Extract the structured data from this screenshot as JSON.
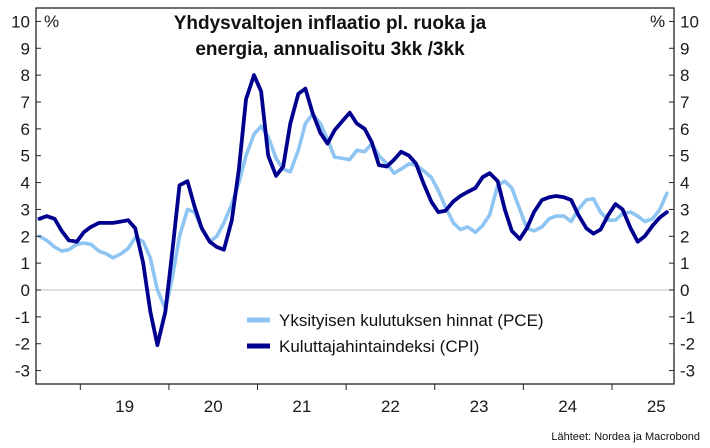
{
  "chart_data": {
    "type": "line",
    "title_lines": [
      "Yhdysvaltojen inflaatio pl. ruoka ja",
      "energia, annualisoitu 3kk /3kk"
    ],
    "ylabel_left": "%",
    "ylabel_right": "%",
    "ylim": [
      -3.5,
      10.5
    ],
    "yticks": [
      -3,
      -2,
      -1,
      0,
      1,
      2,
      3,
      4,
      5,
      6,
      7,
      8,
      9,
      10
    ],
    "x_range": [
      2018.5,
      2025.7
    ],
    "year_ticks": [
      2019,
      2020,
      2021,
      2022,
      2023,
      2024,
      2025,
      2026
    ],
    "year_labels": [
      {
        "label": "19",
        "x": 2019.5
      },
      {
        "label": "20",
        "x": 2020.5
      },
      {
        "label": "21",
        "x": 2021.5
      },
      {
        "label": "22",
        "x": 2022.5
      },
      {
        "label": "23",
        "x": 2023.5
      },
      {
        "label": "24",
        "x": 2024.5
      },
      {
        "label": "25",
        "x": 2025.5
      }
    ],
    "series": [
      {
        "name": "Yksityisen kulutuksen hinnat (PCE)",
        "color": "#8ec5f2",
        "x": [
          2018.54,
          2018.62,
          2018.71,
          2018.79,
          2018.87,
          2018.96,
          2019.04,
          2019.12,
          2019.21,
          2019.29,
          2019.37,
          2019.46,
          2019.54,
          2019.62,
          2019.71,
          2019.79,
          2019.87,
          2019.96,
          2020.04,
          2020.12,
          2020.21,
          2020.29,
          2020.37,
          2020.46,
          2020.54,
          2020.62,
          2020.71,
          2020.79,
          2020.87,
          2020.96,
          2021.04,
          2021.12,
          2021.21,
          2021.29,
          2021.37,
          2021.46,
          2021.54,
          2021.62,
          2021.71,
          2021.79,
          2021.87,
          2021.96,
          2022.04,
          2022.12,
          2022.21,
          2022.29,
          2022.37,
          2022.46,
          2022.54,
          2022.62,
          2022.71,
          2022.79,
          2022.87,
          2022.96,
          2023.04,
          2023.12,
          2023.21,
          2023.29,
          2023.37,
          2023.46,
          2023.54,
          2023.62,
          2023.71,
          2023.79,
          2023.87,
          2023.96,
          2024.04,
          2024.12,
          2024.21,
          2024.29,
          2024.37,
          2024.46,
          2024.54,
          2024.62,
          2024.71,
          2024.79,
          2024.87,
          2024.96,
          2025.04,
          2025.12,
          2025.21,
          2025.29,
          2025.37,
          2025.46,
          2025.54,
          2025.62
        ],
        "values": [
          2.0,
          1.85,
          1.6,
          1.45,
          1.5,
          1.7,
          1.75,
          1.7,
          1.45,
          1.35,
          1.2,
          1.35,
          1.55,
          1.95,
          1.8,
          1.2,
          0.0,
          -0.7,
          0.5,
          2.0,
          3.0,
          2.9,
          2.3,
          1.8,
          2.0,
          2.5,
          3.2,
          4.0,
          5.0,
          5.8,
          6.1,
          5.7,
          4.9,
          4.5,
          4.4,
          5.2,
          6.2,
          6.55,
          6.2,
          5.6,
          4.95,
          4.9,
          4.85,
          5.2,
          5.15,
          5.45,
          5.0,
          4.7,
          4.35,
          4.5,
          4.7,
          4.65,
          4.45,
          4.2,
          3.7,
          3.1,
          2.5,
          2.25,
          2.35,
          2.15,
          2.4,
          2.8,
          3.9,
          4.05,
          3.8,
          3.0,
          2.3,
          2.2,
          2.35,
          2.65,
          2.75,
          2.75,
          2.55,
          3.0,
          3.35,
          3.4,
          2.9,
          2.6,
          2.6,
          2.85,
          2.9,
          2.75,
          2.55,
          2.65,
          3.0,
          3.6
        ]
      },
      {
        "name": "Kuluttajahintaindeksi (CPI)",
        "color": "#00008f",
        "x": [
          2018.54,
          2018.62,
          2018.71,
          2018.79,
          2018.87,
          2018.96,
          2019.04,
          2019.12,
          2019.21,
          2019.29,
          2019.37,
          2019.46,
          2019.54,
          2019.62,
          2019.71,
          2019.79,
          2019.87,
          2019.96,
          2020.04,
          2020.12,
          2020.21,
          2020.29,
          2020.37,
          2020.46,
          2020.54,
          2020.62,
          2020.71,
          2020.79,
          2020.87,
          2020.96,
          2021.04,
          2021.12,
          2021.21,
          2021.29,
          2021.37,
          2021.46,
          2021.54,
          2021.62,
          2021.71,
          2021.79,
          2021.87,
          2021.96,
          2022.04,
          2022.12,
          2022.21,
          2022.29,
          2022.37,
          2022.46,
          2022.54,
          2022.62,
          2022.71,
          2022.79,
          2022.87,
          2022.96,
          2023.04,
          2023.12,
          2023.21,
          2023.29,
          2023.37,
          2023.46,
          2023.54,
          2023.62,
          2023.71,
          2023.79,
          2023.87,
          2023.96,
          2024.04,
          2024.12,
          2024.21,
          2024.29,
          2024.37,
          2024.46,
          2024.54,
          2024.62,
          2024.71,
          2024.79,
          2024.87,
          2024.96,
          2025.04,
          2025.12,
          2025.21,
          2025.29,
          2025.37,
          2025.46,
          2025.54,
          2025.62
        ],
        "values": [
          2.65,
          2.75,
          2.65,
          2.2,
          1.85,
          1.8,
          2.15,
          2.35,
          2.5,
          2.5,
          2.5,
          2.55,
          2.6,
          2.3,
          1.0,
          -0.8,
          -2.05,
          -0.8,
          1.5,
          3.9,
          4.05,
          3.1,
          2.3,
          1.8,
          1.6,
          1.5,
          2.6,
          4.5,
          7.1,
          8.0,
          7.4,
          5.0,
          4.25,
          4.6,
          6.2,
          7.3,
          7.5,
          6.6,
          5.85,
          5.45,
          5.95,
          6.3,
          6.6,
          6.2,
          6.0,
          5.5,
          4.65,
          4.6,
          4.85,
          5.15,
          5.0,
          4.7,
          4.0,
          3.3,
          2.9,
          2.95,
          3.3,
          3.5,
          3.65,
          3.8,
          4.2,
          4.35,
          4.05,
          3.0,
          2.2,
          1.9,
          2.3,
          2.9,
          3.35,
          3.45,
          3.5,
          3.45,
          3.35,
          2.8,
          2.3,
          2.1,
          2.25,
          2.8,
          3.2,
          3.0,
          2.3,
          1.8,
          2.0,
          2.4,
          2.7,
          2.9
        ]
      }
    ],
    "legend_position": "center-bottom",
    "source": "Lähteet: Nordea ja Macrobond"
  }
}
